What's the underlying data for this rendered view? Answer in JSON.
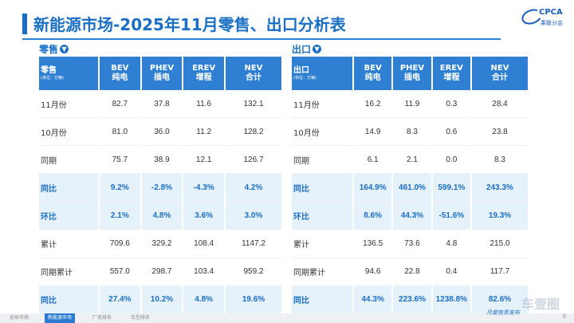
{
  "header": {
    "title": "新能源市场-2025年11月零售、出口分析表",
    "logo_name": "CPCA",
    "logo_sub": "乘联分会"
  },
  "retail": {
    "section_label": "零售",
    "corner_label": "零售",
    "corner_unit": "(单位：万辆)",
    "columns": [
      {
        "top": "BEV",
        "bottom": "纯电"
      },
      {
        "top": "PHEV",
        "bottom": "插电"
      },
      {
        "top": "EREV",
        "bottom": "增程"
      },
      {
        "top": "NEV",
        "bottom": "合计"
      }
    ],
    "rows": [
      {
        "label": "11月份",
        "highlight": false,
        "cells": [
          "82.7",
          "37.8",
          "11.6",
          "132.1"
        ]
      },
      {
        "label": "10月份",
        "highlight": false,
        "cells": [
          "81.0",
          "36.0",
          "11.2",
          "128.2"
        ]
      },
      {
        "label": "同期",
        "highlight": false,
        "cells": [
          "75.7",
          "38.9",
          "12.1",
          "126.7"
        ]
      },
      {
        "label": "同比",
        "highlight": true,
        "cells": [
          "9.2%",
          "-2.8%",
          "-4.3%",
          "4.2%"
        ]
      },
      {
        "label": "环比",
        "highlight": true,
        "cells": [
          "2.1%",
          "4.8%",
          "3.6%",
          "3.0%"
        ]
      },
      {
        "label": "累计",
        "highlight": false,
        "cells": [
          "709.6",
          "329.2",
          "108.4",
          "1147.2"
        ]
      },
      {
        "label": "同期累计",
        "highlight": false,
        "cells": [
          "557.0",
          "298.7",
          "103.4",
          "959.2"
        ]
      },
      {
        "label": "同比",
        "highlight": true,
        "cells": [
          "27.4%",
          "10.2%",
          "4.8%",
          "19.6%"
        ]
      }
    ]
  },
  "export": {
    "section_label": "出口",
    "corner_label": "出口",
    "corner_unit": "(单位：万辆)",
    "columns": [
      {
        "top": "BEV",
        "bottom": "纯电"
      },
      {
        "top": "PHEV",
        "bottom": "插电"
      },
      {
        "top": "EREV",
        "bottom": "增程"
      },
      {
        "top": "NEV",
        "bottom": "合计"
      }
    ],
    "rows": [
      {
        "label": "11月份",
        "highlight": false,
        "cells": [
          "16.2",
          "11.9",
          "0.3",
          "28.4"
        ]
      },
      {
        "label": "10月份",
        "highlight": false,
        "cells": [
          "14.9",
          "8.3",
          "0.6",
          "23.8"
        ]
      },
      {
        "label": "同期",
        "highlight": false,
        "cells": [
          "6.1",
          "2.1",
          "0.0",
          "8.3"
        ]
      },
      {
        "label": "同比",
        "highlight": true,
        "cells": [
          "164.9%",
          "461.0%",
          "599.1%",
          "243.3%"
        ]
      },
      {
        "label": "环比",
        "highlight": true,
        "cells": [
          "8.6%",
          "44.3%",
          "-51.6%",
          "19.3%"
        ]
      },
      {
        "label": "累计",
        "highlight": false,
        "cells": [
          "136.5",
          "73.6",
          "4.8",
          "215.0"
        ]
      },
      {
        "label": "同期累计",
        "highlight": false,
        "cells": [
          "94.6",
          "22.8",
          "0.4",
          "117.7"
        ]
      },
      {
        "label": "同比",
        "highlight": true,
        "cells": [
          "44.3%",
          "223.6%",
          "1238.8%",
          "82.6%"
        ]
      }
    ]
  },
  "footer": {
    "tabs": [
      {
        "label": "总体市场",
        "active": false
      },
      {
        "label": "新能源市场",
        "active": true
      },
      {
        "label": "厂商排名",
        "active": false
      },
      {
        "label": "车型排名",
        "active": false
      }
    ],
    "brand": "月度信息发布",
    "page_number": "6",
    "watermark": "车壹圈"
  },
  "colors": {
    "accent": "#1a6fc4",
    "header_bg": "#2f80d3",
    "highlight_bg": "#e5f1fb"
  }
}
